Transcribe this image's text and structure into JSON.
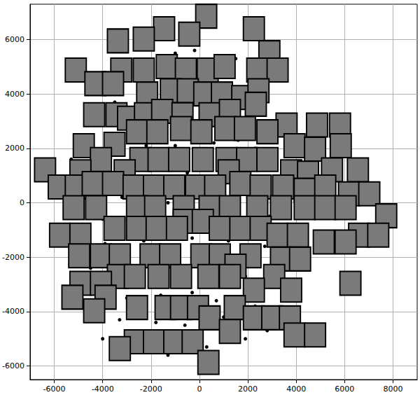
{
  "chart_data": {
    "type": "scatter",
    "xlim": [
      -7000,
      9000
    ],
    "xticks": [
      -6000,
      -4000,
      -2000,
      0,
      2000,
      4000,
      6000,
      8000
    ],
    "ylim": [
      -6500,
      7300
    ],
    "yticks": [
      -6000,
      -4000,
      -2000,
      0,
      2000,
      4000,
      6000
    ],
    "grid": true,
    "series": [
      {
        "marker": "circle",
        "color": "#000000",
        "x": [
          -4200,
          -700,
          -1000,
          -200,
          1500,
          2500,
          -2000,
          -3500,
          -500,
          1000,
          2000,
          -1500,
          500,
          1600,
          -3200,
          -2200,
          -1000,
          600,
          2300,
          3200,
          -5300,
          -3800,
          -2000,
          -500,
          900,
          2400,
          -4700,
          -3200,
          -1300,
          800,
          2000,
          2900,
          -200,
          -2200,
          -4000,
          1200,
          -300,
          -2300,
          -3900,
          2700,
          500,
          -1000,
          -2100,
          -4500,
          1900,
          -300,
          -1600,
          -3000,
          700,
          2300,
          -3300,
          -1800,
          -600,
          1000,
          2800,
          -4000,
          -1300,
          300,
          1900
        ],
        "values": [
          4100,
          6000,
          5500,
          5600,
          5300,
          4500,
          4200,
          3700,
          3600,
          3800,
          3300,
          2900,
          2900,
          2300,
          2500,
          2100,
          2100,
          2200,
          2000,
          1800,
          1600,
          1300,
          1200,
          1100,
          1000,
          900,
          300,
          200,
          0,
          300,
          200,
          -500,
          -500,
          -500,
          -600,
          -1400,
          -1300,
          -1400,
          -1500,
          -1600,
          -2300,
          -2300,
          -2300,
          -2400,
          -2700,
          -3300,
          -3400,
          -3500,
          -3600,
          -3800,
          -4300,
          -4400,
          -4500,
          -4200,
          -4700,
          -5000,
          -5600,
          -5300,
          -5000
        ]
      },
      {
        "marker": "square",
        "color": "#7a7a7a",
        "x": [
          280,
          -1460,
          -420,
          -2300,
          2250,
          -3370,
          2890,
          -5110,
          -3230,
          -2300,
          -1350,
          -560,
          340,
          1040,
          2390,
          3230,
          -4300,
          -3570,
          -1180,
          -2160,
          -480,
          200,
          930,
          1770,
          2440,
          2330,
          -4350,
          -3430,
          -2950,
          -2250,
          -1540,
          -700,
          420,
          1260,
          3600,
          4860,
          5810,
          -2580,
          -1740,
          -760,
          80,
          1070,
          1880,
          2810,
          -4780,
          -3510,
          3930,
          4780,
          5840,
          -4070,
          -2440,
          -1690,
          -840,
          140,
          1120,
          1970,
          2810,
          -6380,
          -4920,
          -3090,
          1210,
          3790,
          4490,
          5480,
          6550,
          -5815,
          -5110,
          -4410,
          -3570,
          -2720,
          -1880,
          -1040,
          -140,
          650,
          1690,
          2530,
          3460,
          4350,
          5200,
          6180,
          7020,
          -5200,
          -4270,
          -2580,
          -1830,
          -650,
          420,
          1260,
          2390,
          3370,
          4350,
          5200,
          6040,
          7720,
          -650,
          140,
          -3510,
          -2580,
          -1770,
          -930,
          840,
          1690,
          2530,
          -5760,
          -4920,
          3230,
          4070,
          6600,
          7390,
          5140,
          6040,
          -4970,
          -4070,
          -3290,
          -2020,
          -1210,
          80,
          840,
          2110,
          3370,
          4160,
          1490,
          -3370,
          -2670,
          -1690,
          -760,
          370,
          1260,
          3090,
          -4920,
          -4070,
          6240,
          2250,
          3790,
          -5250,
          -3880,
          -2580,
          -1400,
          -760,
          -60,
          1460,
          -4350,
          420,
          2250,
          3010,
          3740,
          1260,
          3930,
          4780,
          -2670,
          -1880,
          -1040,
          -280,
          -3290,
          370
        ],
        "values": [
          6860,
          6400,
          6200,
          6020,
          6400,
          5950,
          5520,
          4880,
          4880,
          4880,
          5010,
          4880,
          4880,
          5010,
          4880,
          4880,
          4380,
          4380,
          4120,
          4000,
          4120,
          4000,
          4000,
          3870,
          4120,
          3620,
          3240,
          3240,
          3110,
          3240,
          3360,
          3240,
          3240,
          3360,
          2860,
          2860,
          2860,
          2610,
          2610,
          2730,
          2610,
          2730,
          2730,
          2610,
          2100,
          2150,
          2100,
          1970,
          2100,
          1590,
          1590,
          1590,
          1590,
          1590,
          1590,
          1590,
          1590,
          1210,
          1140,
          1140,
          1140,
          1140,
          1090,
          1210,
          1210,
          580,
          580,
          710,
          710,
          580,
          580,
          580,
          580,
          580,
          710,
          580,
          580,
          460,
          580,
          330,
          330,
          -180,
          -180,
          -180,
          -180,
          -180,
          -180,
          -180,
          -180,
          -180,
          -180,
          -180,
          -180,
          -480,
          -680,
          -680,
          -940,
          -940,
          -940,
          -940,
          -940,
          -940,
          -940,
          -1190,
          -1190,
          -1190,
          -1190,
          -1190,
          -1190,
          -1440,
          -1440,
          -1950,
          -1950,
          -1950,
          -1950,
          -1950,
          -1950,
          -1950,
          -1950,
          -2070,
          -2070,
          -2330,
          -2710,
          -2710,
          -2710,
          -2710,
          -2710,
          -2710,
          -2710,
          -2960,
          -2960,
          -2960,
          -3210,
          -3210,
          -3470,
          -3470,
          -3850,
          -3850,
          -3850,
          -3850,
          -3850,
          -3970,
          -4230,
          -4230,
          -4230,
          -4230,
          -4730,
          -4860,
          -4860,
          -5110,
          -5110,
          -5110,
          -5110,
          -5360,
          -5870
        ]
      }
    ]
  }
}
